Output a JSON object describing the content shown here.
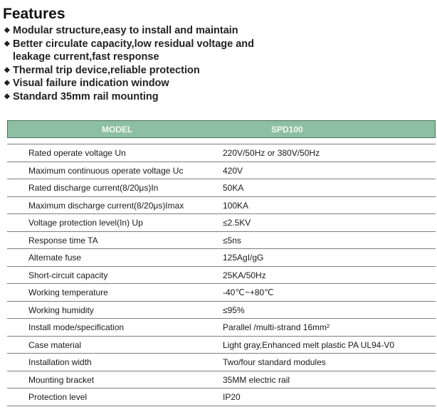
{
  "title": "Features",
  "features": [
    "Modular structure,easy to install and maintain",
    "Better circulate capacity,low residual voltage and",
    "leakage current,fast response",
    "Thermal trip device,reliable protection",
    "Visual failure indication window",
    "Standard 35mm rail mounting"
  ],
  "table": {
    "header": {
      "model": "MODEL",
      "value": "SPD100"
    },
    "header_color": "#8dbfa3",
    "rows": [
      {
        "k": "Rated operate voltage Un",
        "v": "220V/50Hz or 380V/50Hz"
      },
      {
        "k": "Maximum continuous operate voltage Uc",
        "v": "420V"
      },
      {
        "k": "Rated discharge current(8/20μs)In",
        "v": "50KA"
      },
      {
        "k": "Maximum discharge current(8/20μs)Imax",
        "v": "100KA"
      },
      {
        "k": "Voltage protection level(In) Up",
        "v": "≤2.5KV"
      },
      {
        "k": "Response time TA",
        "v": "≤5ns"
      },
      {
        "k": "Alternate fuse",
        "v": "125AgI/gG"
      },
      {
        "k": "Short-circuit capacity",
        "v": "25KA/50Hz"
      },
      {
        "k": "Working temperature",
        "v": "-40℃~+80℃"
      },
      {
        "k": "Working humidity",
        "v": "≤95%"
      },
      {
        "k": "Install mode/specification",
        "v": "Parallel /multi-strand 16mm²"
      },
      {
        "k": "Case material",
        "v": "Light gray,Enhanced melt plastic PA UL94-V0"
      },
      {
        "k": "Installation width",
        "v": "Two/four standard modules"
      },
      {
        "k": "Mounting bracket",
        "v": "35MM electric rail"
      },
      {
        "k": "Protection level",
        "v": "IP20"
      }
    ]
  }
}
